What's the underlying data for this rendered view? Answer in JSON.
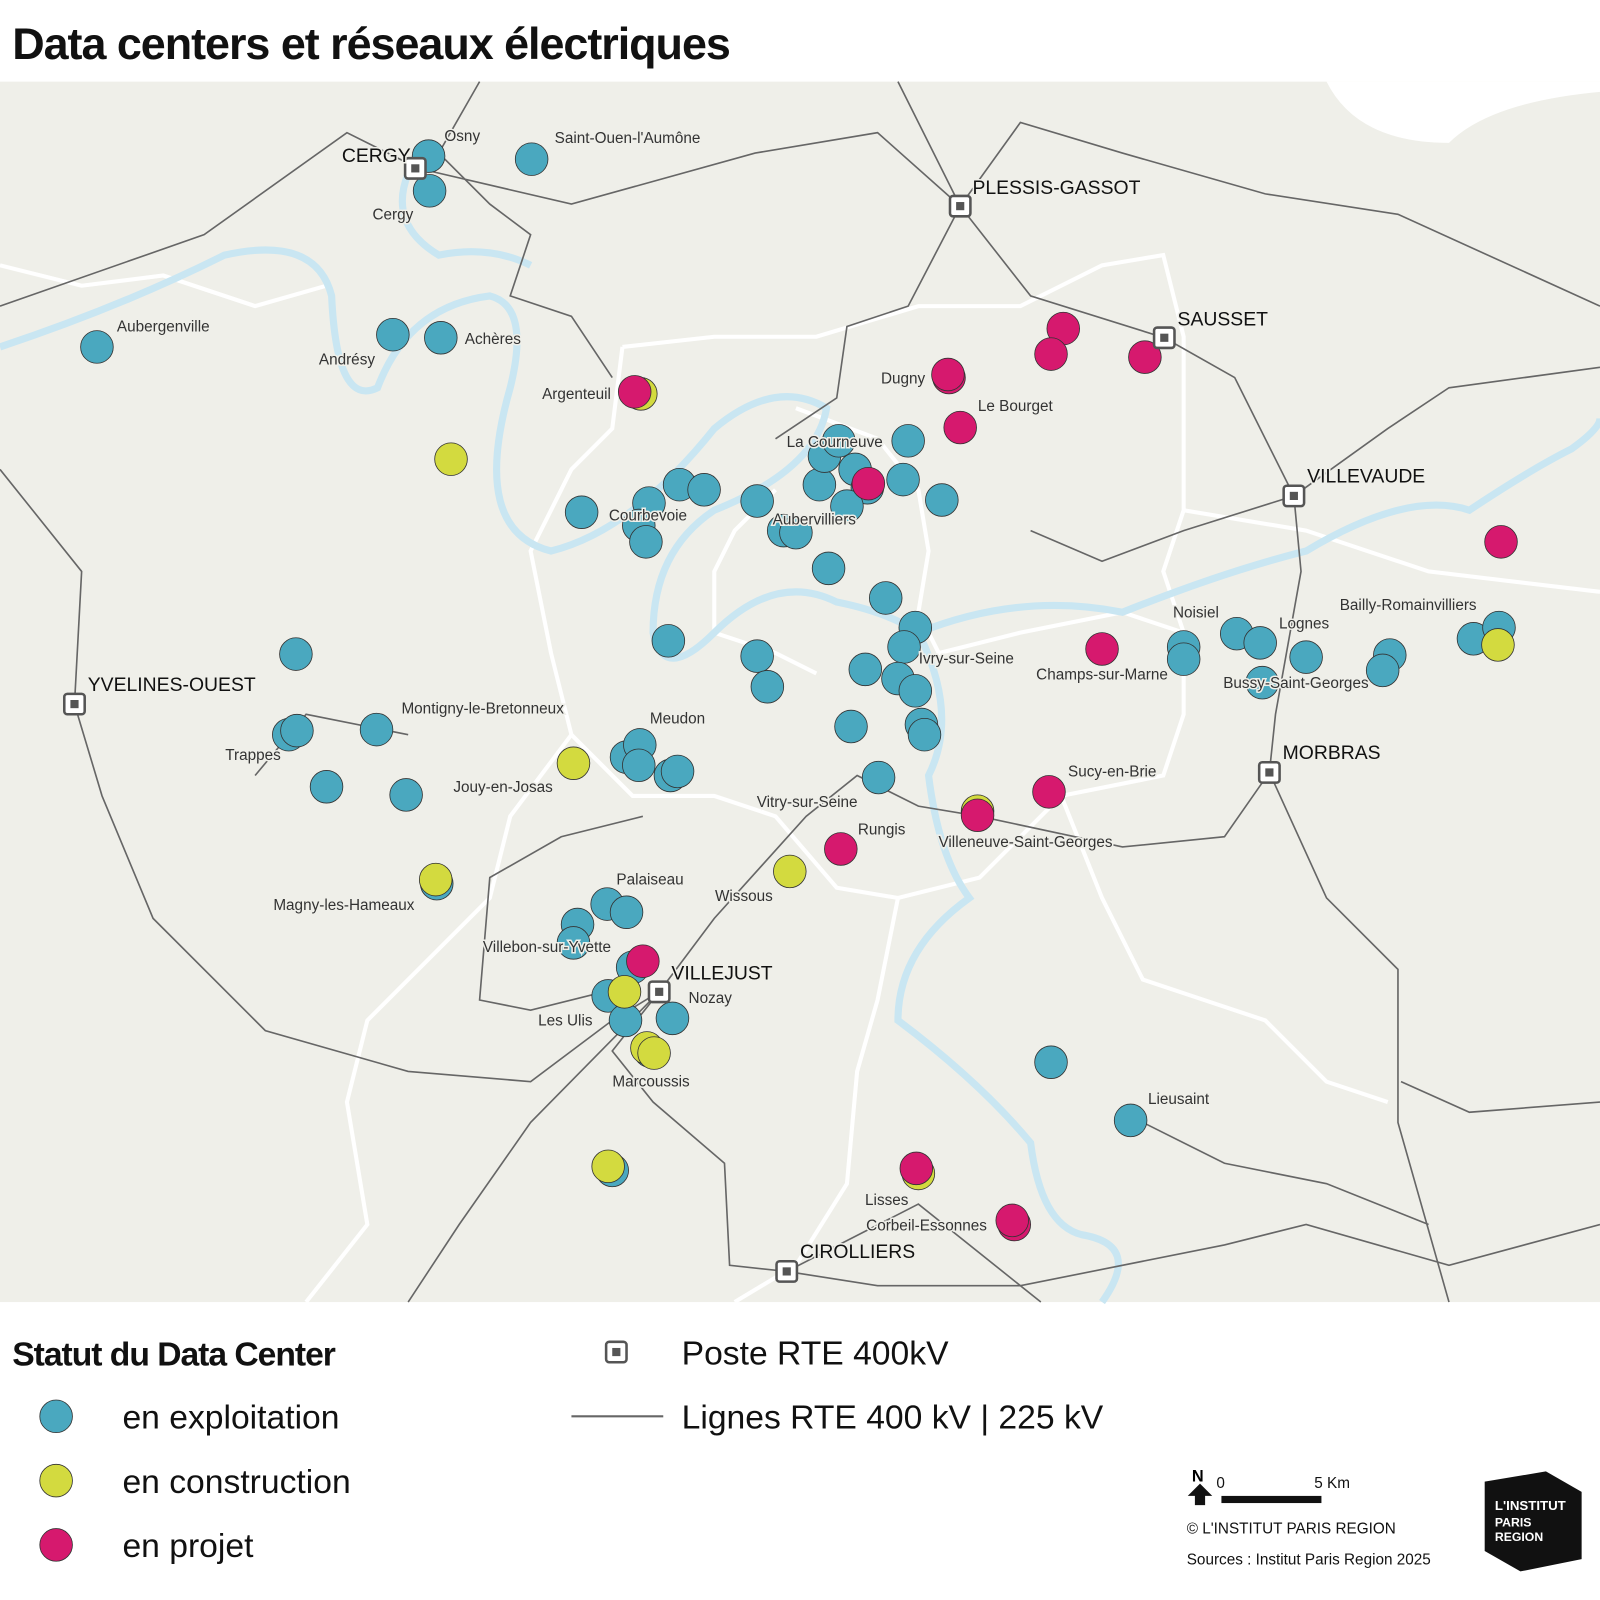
{
  "title": "Data centers et réseaux électriques",
  "map": {
    "places": [
      "Osny",
      "Saint-Ouen-l'Aumône",
      "Cergy",
      "Aubergenville",
      "Andrésy",
      "Achères",
      "Argenteuil",
      "Dugny",
      "Le Bourget",
      "La Courneuve",
      "Courbevoie",
      "Aubervilliers",
      "Noisiel",
      "Lognes",
      "Bailly-Romainvilliers",
      "Ivry-sur-Seine",
      "Champs-sur-Marne",
      "Bussy-Saint-Georges",
      "Montigny-le-Bretonneux",
      "Meudon",
      "Trappes",
      "Jouy-en-Josas",
      "Sucy-en-Brie",
      "Vitry-sur-Seine",
      "Rungis",
      "Villeneuve-Saint-Georges",
      "Wissous",
      "Palaiseau",
      "Magny-les-Hameaux",
      "Villebon-sur-Yvette",
      "Nozay",
      "Les Ulis",
      "Marcoussis",
      "Lieusaint",
      "Lisses",
      "Corbeil-Essonnes"
    ],
    "substations": [
      "CERGY",
      "PLESSIS-GASSOT",
      "SAUSSET",
      "VILLEVAUDE",
      "YVELINES-OUEST",
      "MORBRAS",
      "VILLEJUST",
      "CIROLLIERS"
    ]
  },
  "legend": {
    "title": "Statut du Data Center",
    "items": [
      "en exploitation",
      "en construction",
      "en projet"
    ],
    "substation": "Poste RTE 400kV",
    "lines": "Lignes RTE 400 kV | 225 kV"
  },
  "scale": {
    "north": "N",
    "start": "0",
    "end": "5 Km"
  },
  "credits": [
    "© L'INSTITUT PARIS REGION",
    "Sources : Institut Paris Region 2025"
  ],
  "logo": [
    "L'INSTITUT",
    "PARIS",
    "REGION"
  ]
}
